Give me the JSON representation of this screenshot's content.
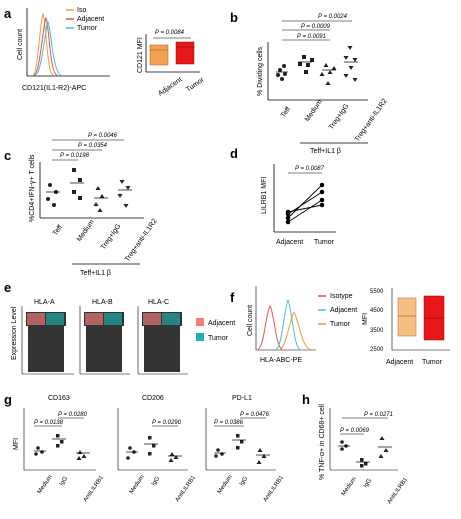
{
  "panels": {
    "a": {
      "letter": "a",
      "hist_ylabel": "Cell count",
      "hist_xlabel": "CD121(IL1-R2)-APC",
      "legend": [
        {
          "label": "Iso",
          "color": "#f0a040"
        },
        {
          "label": "Adjacent",
          "color": "#e85050"
        },
        {
          "label": "Tumor",
          "color": "#40c0d8"
        }
      ],
      "box_ylabel": "CD121 MFI",
      "box_pvalue": "P = 0.0084",
      "box_categories": [
        "Adjacent",
        "Tumor"
      ]
    },
    "b": {
      "letter": "b",
      "ylabel": "% Dividing cells",
      "categories": [
        "Teff",
        "Medium",
        "Treg+IgG",
        "Treg+anti-IL1R2"
      ],
      "pvalues": [
        "P = 0.0024",
        "P = 0.0009",
        "P = 0.0091"
      ],
      "group_label": "Teff+IL1 β"
    },
    "c": {
      "letter": "c",
      "ylabel": "%CD4+IFN-γ+ T cells",
      "categories": [
        "Teff",
        "Medium",
        "Treg+IgG",
        "Treg+anti-IL1R2"
      ],
      "pvalues": [
        "P = 0.0046",
        "P = 0.0354",
        "P = 0.0198"
      ],
      "group_label": "Teff+IL1 β"
    },
    "d": {
      "letter": "d",
      "ylabel": "LILRB1 MFI",
      "pvalue": "P = 0.0087",
      "categories": [
        "Adjacent",
        "Tumor"
      ]
    },
    "e": {
      "letter": "e",
      "ylabel": "Expression Level",
      "genes": [
        "HLA-A",
        "HLA-B",
        "HLA-C"
      ],
      "legend": [
        {
          "label": "Adjacent",
          "color": "#f08080"
        },
        {
          "label": "Tumor",
          "color": "#20b0b0"
        }
      ]
    },
    "f": {
      "letter": "f",
      "hist_ylabel": "Cell count",
      "hist_xlabel": "HLA-ABC-PE",
      "legend": [
        {
          "label": "Isotype",
          "color": "#e85050"
        },
        {
          "label": "Adjacent",
          "color": "#40c0d8"
        },
        {
          "label": "Tumor",
          "color": "#e0a030"
        }
      ],
      "box_ylabel": "MFI",
      "box_yticks": [
        "5500",
        "4500",
        "3500",
        "2500"
      ],
      "box_categories": [
        "Adjacent",
        "Tumor"
      ]
    },
    "g": {
      "letter": "g",
      "ylabel": "MFI",
      "subpanels": [
        {
          "title": "CD163",
          "p_top": "P = 0.0280",
          "p_bottom": "P = 0.0138",
          "categories": [
            "Medium",
            "IgG",
            "AntiLILRB1"
          ]
        },
        {
          "title": "CD206",
          "p_top": "P = 0.0290",
          "categories": [
            "Medium",
            "IgG",
            "AntiLILRB1"
          ]
        },
        {
          "title": "PD-L1",
          "p_top": "P = 0.0476",
          "p_bottom": "P = 0.0386",
          "categories": [
            "Medium",
            "IgG",
            "AntiLILRB1"
          ]
        }
      ]
    },
    "h": {
      "letter": "h",
      "ylabel": "% TNF-α+ in CD68+ cell",
      "p_top": "P = 0.0271",
      "p_bottom": "P = 0.0069",
      "categories": [
        "Medium",
        "IgG",
        "AntiLILRB1"
      ]
    }
  }
}
